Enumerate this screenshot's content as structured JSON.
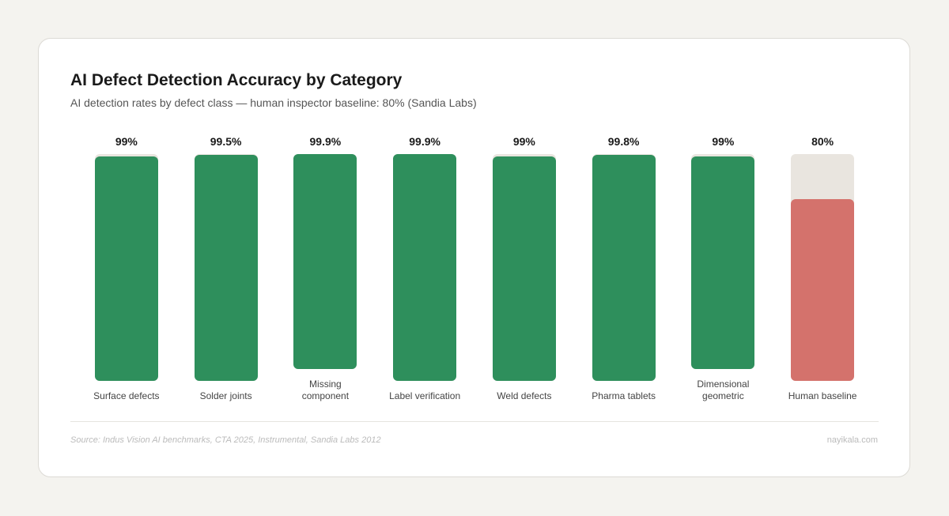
{
  "chart_data": {
    "type": "bar",
    "title": "AI Defect Detection Accuracy by Category",
    "subtitle": "AI detection rates by defect class — human inspector baseline: 80% (Sandia Labs)",
    "categories": [
      "Surface defects",
      "Solder joints",
      "Missing\ncomponent",
      "Label verification",
      "Weld defects",
      "Pharma tablets",
      "Dimensional\ngeometric",
      "Human baseline"
    ],
    "values": [
      99,
      99.5,
      99.9,
      99.9,
      99,
      99.8,
      99,
      80
    ],
    "value_labels": [
      "99%",
      "99.5%",
      "99.9%",
      "99.9%",
      "99%",
      "99.8%",
      "99%",
      "80%"
    ],
    "colors": [
      "#2e8f5c",
      "#2e8f5c",
      "#2e8f5c",
      "#2e8f5c",
      "#2e8f5c",
      "#2e8f5c",
      "#2e8f5c",
      "#d4726c"
    ],
    "track_color": "#e9e5df",
    "ylim": [
      0,
      100
    ],
    "source": "Source: Indus Vision AI benchmarks, CTA 2025, Instrumental, Sandia Labs 2012",
    "credit": "nayikala.com"
  }
}
